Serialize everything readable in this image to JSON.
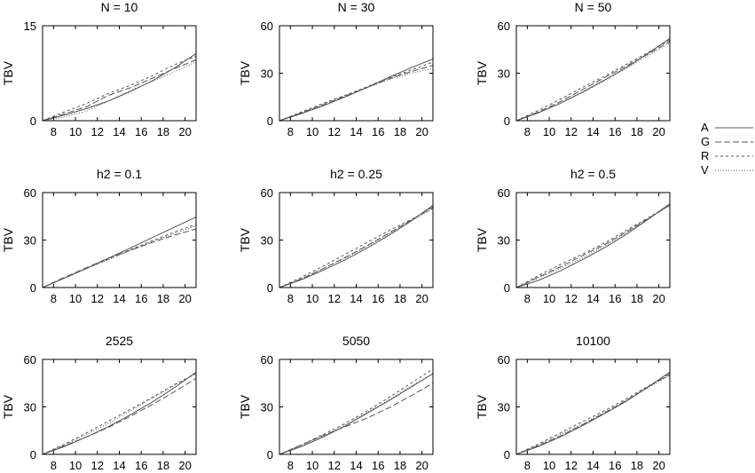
{
  "chart_data": [
    {
      "type": "line",
      "title": "N = 10",
      "ylabel": "TBV",
      "xlim": [
        7,
        21
      ],
      "ylim": [
        0,
        15
      ],
      "xticks": [
        8,
        10,
        12,
        14,
        16,
        18,
        20
      ],
      "yticks": [
        0,
        15
      ],
      "x": [
        7,
        9,
        11,
        13,
        15,
        17,
        19,
        21
      ],
      "series": [
        {
          "name": "A",
          "values": [
            0,
            0.9,
            1.9,
            3.1,
            4.6,
            6.3,
            8.3,
            10.6
          ]
        },
        {
          "name": "G",
          "values": [
            0,
            1.1,
            2.2,
            4.0,
            5.2,
            6.7,
            8.2,
            9.6
          ]
        },
        {
          "name": "R",
          "values": [
            0,
            1.4,
            2.7,
            4.3,
            5.6,
            7.1,
            8.8,
            10.2
          ]
        },
        {
          "name": "V",
          "values": [
            0,
            0.6,
            1.5,
            3.1,
            4.8,
            6.2,
            7.7,
            9.3
          ]
        }
      ]
    },
    {
      "type": "line",
      "title": "N = 30",
      "ylabel": "TBV",
      "xlim": [
        7,
        21
      ],
      "ylim": [
        0,
        60
      ],
      "xticks": [
        8,
        10,
        12,
        14,
        16,
        18,
        20
      ],
      "yticks": [
        0,
        30,
        60
      ],
      "x": [
        7,
        9,
        11,
        13,
        15,
        17,
        19,
        21
      ],
      "series": [
        {
          "name": "A",
          "values": [
            0,
            4.5,
            9.5,
            15,
            21,
            27.5,
            33.5,
            39
          ]
        },
        {
          "name": "G",
          "values": [
            0,
            5,
            10,
            15.5,
            21,
            26.5,
            31,
            35
          ]
        },
        {
          "name": "R",
          "values": [
            0,
            5.5,
            11,
            16,
            21.5,
            27,
            32,
            37
          ]
        },
        {
          "name": "V",
          "values": [
            0,
            5,
            10.5,
            16,
            21,
            26,
            30,
            33
          ]
        }
      ]
    },
    {
      "type": "line",
      "title": "N = 50",
      "ylabel": "TBV",
      "xlim": [
        7,
        21
      ],
      "ylim": [
        0,
        60
      ],
      "xticks": [
        8,
        10,
        12,
        14,
        16,
        18,
        20
      ],
      "yticks": [
        0,
        30,
        60
      ],
      "x": [
        7,
        9,
        11,
        13,
        15,
        17,
        19,
        21
      ],
      "series": [
        {
          "name": "A",
          "values": [
            0,
            5,
            11,
            18,
            25.5,
            33.5,
            42.5,
            52
          ]
        },
        {
          "name": "G",
          "values": [
            0,
            5.5,
            12,
            19.5,
            27,
            34.5,
            42,
            50
          ]
        },
        {
          "name": "R",
          "values": [
            0,
            6.5,
            13.5,
            21,
            28,
            35.5,
            43,
            51
          ]
        },
        {
          "name": "V",
          "values": [
            0,
            5,
            11,
            17.5,
            25,
            33,
            41,
            49
          ]
        }
      ]
    },
    {
      "type": "line",
      "title": "h2 = 0.1",
      "ylabel": "TBV",
      "xlim": [
        7,
        21
      ],
      "ylim": [
        0,
        60
      ],
      "xticks": [
        8,
        10,
        12,
        14,
        16,
        18,
        20
      ],
      "yticks": [
        0,
        30,
        60
      ],
      "x": [
        7,
        9,
        11,
        13,
        15,
        17,
        19,
        21
      ],
      "series": [
        {
          "name": "A",
          "values": [
            0,
            6,
            12,
            18.5,
            25,
            31.5,
            38,
            44.5
          ]
        },
        {
          "name": "G",
          "values": [
            0,
            6.5,
            12.5,
            18.5,
            23.5,
            28.5,
            33,
            37
          ]
        },
        {
          "name": "R",
          "values": [
            0,
            6,
            12,
            18,
            24,
            29.5,
            35,
            40
          ]
        },
        {
          "name": "V",
          "values": [
            0,
            6,
            12,
            17.5,
            23.5,
            29,
            34,
            39
          ]
        }
      ]
    },
    {
      "type": "line",
      "title": "h2 = 0.25",
      "ylabel": "TBV",
      "xlim": [
        7,
        21
      ],
      "ylim": [
        0,
        60
      ],
      "xticks": [
        8,
        10,
        12,
        14,
        16,
        18,
        20
      ],
      "yticks": [
        0,
        30,
        60
      ],
      "x": [
        7,
        9,
        11,
        13,
        15,
        17,
        19,
        21
      ],
      "series": [
        {
          "name": "A",
          "values": [
            0,
            5,
            11,
            17.5,
            25,
            33,
            42,
            52
          ]
        },
        {
          "name": "G",
          "values": [
            0,
            5.5,
            12,
            19,
            26.5,
            34.5,
            42.5,
            51
          ]
        },
        {
          "name": "R",
          "values": [
            0,
            6.5,
            13.5,
            21,
            28.5,
            36,
            43,
            50
          ]
        },
        {
          "name": "V",
          "values": [
            0,
            5.5,
            12,
            18.5,
            26,
            34,
            42,
            50
          ]
        }
      ]
    },
    {
      "type": "line",
      "title": "h2 = 0.5",
      "ylabel": "TBV",
      "xlim": [
        7,
        21
      ],
      "ylim": [
        0,
        60
      ],
      "xticks": [
        8,
        10,
        12,
        14,
        16,
        18,
        20
      ],
      "yticks": [
        0,
        30,
        60
      ],
      "x": [
        7,
        9,
        11,
        13,
        15,
        17,
        19,
        21
      ],
      "series": [
        {
          "name": "A",
          "values": [
            0,
            4.5,
            10.5,
            17.5,
            25,
            33.5,
            43,
            53
          ]
        },
        {
          "name": "G",
          "values": [
            0,
            6.5,
            13,
            20,
            27,
            35,
            43.5,
            52
          ]
        },
        {
          "name": "R",
          "values": [
            0,
            7.5,
            14.5,
            21,
            28,
            36,
            44,
            52
          ]
        },
        {
          "name": "V",
          "values": [
            0,
            6,
            12,
            18.5,
            26,
            34.5,
            43,
            52
          ]
        }
      ]
    },
    {
      "type": "line",
      "title": "2525",
      "ylabel": "TBV",
      "xlim": [
        7,
        21
      ],
      "ylim": [
        0,
        60
      ],
      "xticks": [
        8,
        10,
        12,
        14,
        16,
        18,
        20
      ],
      "yticks": [
        0,
        30,
        60
      ],
      "x": [
        7,
        9,
        11,
        13,
        15,
        17,
        19,
        21
      ],
      "series": [
        {
          "name": "A",
          "values": [
            0,
            5,
            11,
            17.5,
            25,
            33,
            42,
            52
          ]
        },
        {
          "name": "G",
          "values": [
            0,
            5.5,
            11,
            17,
            24,
            31.5,
            39.5,
            48
          ]
        },
        {
          "name": "R",
          "values": [
            0,
            6.5,
            13.5,
            21,
            28.5,
            36,
            44,
            51
          ]
        },
        {
          "name": "V",
          "values": [
            0,
            6,
            12.5,
            19.5,
            27.5,
            35.5,
            43.5,
            51
          ]
        }
      ]
    },
    {
      "type": "line",
      "title": "5050",
      "ylabel": "TBV",
      "xlim": [
        7,
        21
      ],
      "ylim": [
        0,
        60
      ],
      "xticks": [
        8,
        10,
        12,
        14,
        16,
        18,
        20
      ],
      "yticks": [
        0,
        30,
        60
      ],
      "x": [
        7,
        9,
        11,
        13,
        15,
        17,
        19,
        21
      ],
      "series": [
        {
          "name": "A",
          "values": [
            0,
            5,
            11,
            18,
            26,
            34,
            42.5,
            51
          ]
        },
        {
          "name": "G",
          "values": [
            0,
            6,
            12,
            17.5,
            23,
            29.5,
            37,
            45
          ]
        },
        {
          "name": "R",
          "values": [
            0,
            6,
            12.5,
            19.5,
            27.5,
            36,
            45,
            54
          ]
        },
        {
          "name": "V",
          "values": [
            0,
            5.5,
            11.5,
            18.5,
            26.5,
            34.5,
            43,
            51
          ]
        }
      ]
    },
    {
      "type": "line",
      "title": "10100",
      "ylabel": "TBV",
      "xlim": [
        7,
        21
      ],
      "ylim": [
        0,
        60
      ],
      "xticks": [
        8,
        10,
        12,
        14,
        16,
        18,
        20
      ],
      "yticks": [
        0,
        30,
        60
      ],
      "x": [
        7,
        9,
        11,
        13,
        15,
        17,
        19,
        21
      ],
      "series": [
        {
          "name": "A",
          "values": [
            0,
            5,
            11,
            18,
            25.5,
            33.5,
            42.5,
            52
          ]
        },
        {
          "name": "G",
          "values": [
            0,
            5.5,
            11.5,
            18.5,
            26,
            34,
            42.5,
            51
          ]
        },
        {
          "name": "R",
          "values": [
            0,
            6.5,
            13.5,
            20.5,
            27.5,
            35,
            43,
            50
          ]
        },
        {
          "name": "V",
          "values": [
            0,
            6,
            12.5,
            19,
            26.5,
            34,
            42,
            50
          ]
        }
      ]
    }
  ],
  "legend": {
    "placement": "right",
    "entries": [
      {
        "label": "A",
        "style": "solid"
      },
      {
        "label": "G",
        "style": "dashed"
      },
      {
        "label": "R",
        "style": "short-dashed"
      },
      {
        "label": "V",
        "style": "dotted"
      }
    ]
  },
  "colors": {
    "line": "#555555",
    "axis": "#000000"
  }
}
